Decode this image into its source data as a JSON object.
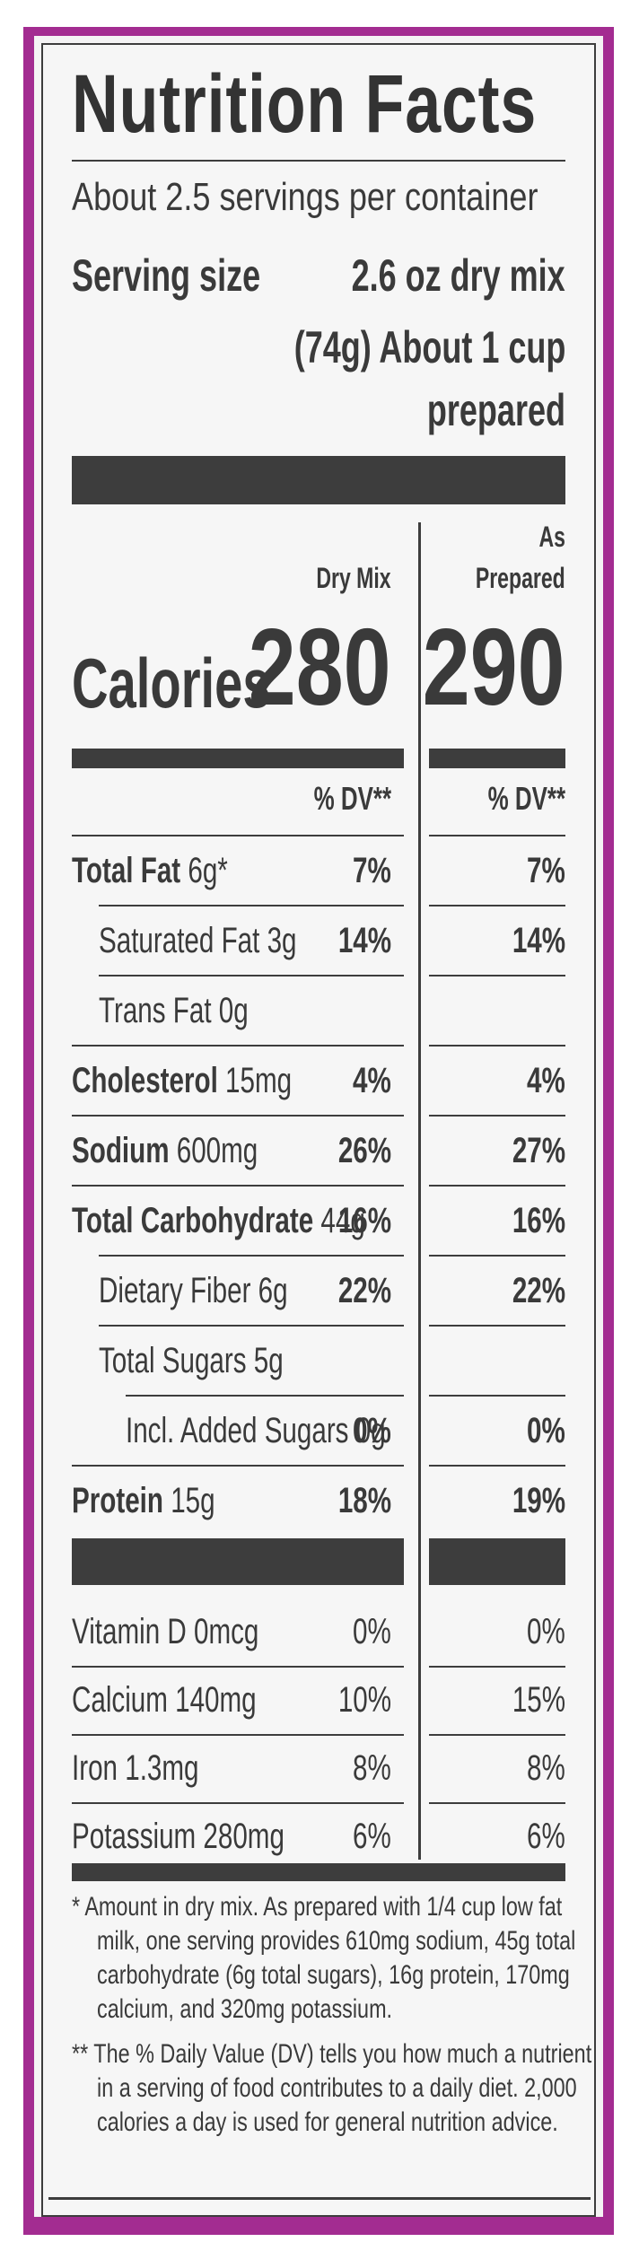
{
  "title": "Nutrition Facts",
  "servings_per_container": "About 2.5 servings per container",
  "serving_size": {
    "label": "Serving size",
    "line1": "2.6 oz dry mix",
    "line2": "(74g) About 1 cup",
    "line3": "prepared"
  },
  "columns": {
    "dry_mix": "Dry Mix",
    "as_prepared_line1": "As",
    "as_prepared_line2": "Prepared"
  },
  "calories": {
    "label": "Calories",
    "dry_mix": "280",
    "as_prepared": "290"
  },
  "dv_header": "% DV**",
  "nutrients": [
    {
      "name": "Total Fat",
      "amount": "6g*",
      "bold": true,
      "indent": 0,
      "dv_dry": "7%",
      "dv_prep": "7%"
    },
    {
      "name": "Saturated Fat",
      "amount": "3g",
      "bold": false,
      "indent": 1,
      "dv_dry": "14%",
      "dv_prep": "14%"
    },
    {
      "name": "Trans Fat",
      "amount": "0g",
      "bold": false,
      "indent": 1,
      "dv_dry": "",
      "dv_prep": ""
    },
    {
      "name": "Cholesterol",
      "amount": "15mg",
      "bold": true,
      "indent": 0,
      "dv_dry": "4%",
      "dv_prep": "4%"
    },
    {
      "name": "Sodium",
      "amount": "600mg",
      "bold": true,
      "indent": 0,
      "dv_dry": "26%",
      "dv_prep": "27%"
    },
    {
      "name": "Total Carbohydrate",
      "amount": "44g",
      "bold": true,
      "indent": 0,
      "dv_dry": "16%",
      "dv_prep": "16%"
    },
    {
      "name": "Dietary Fiber",
      "amount": "6g",
      "bold": false,
      "indent": 1,
      "dv_dry": "22%",
      "dv_prep": "22%"
    },
    {
      "name": "Total Sugars",
      "amount": "5g",
      "bold": false,
      "indent": 1,
      "dv_dry": "",
      "dv_prep": ""
    },
    {
      "name": "Incl. Added Sugars",
      "amount": "0g",
      "bold": false,
      "indent": 2,
      "dv_dry": "0%",
      "dv_prep": "0%"
    },
    {
      "name": "Protein",
      "amount": "15g",
      "bold": true,
      "indent": 0,
      "dv_dry": "18%",
      "dv_prep": "19%"
    }
  ],
  "vitamins": [
    {
      "name": "Vitamin D",
      "amount": "0mcg",
      "dv_dry": "0%",
      "dv_prep": "0%"
    },
    {
      "name": "Calcium",
      "amount": "140mg",
      "dv_dry": "10%",
      "dv_prep": "15%"
    },
    {
      "name": "Iron",
      "amount": "1.3mg",
      "dv_dry": "8%",
      "dv_prep": "8%"
    },
    {
      "name": "Potassium",
      "amount": "280mg",
      "dv_dry": "6%",
      "dv_prep": "6%"
    }
  ],
  "footnotes": {
    "star": [
      "* Amount in dry mix. As prepared with 1/4 cup low fat",
      "milk, one serving provides 610mg sodium, 45g total",
      "carbohydrate (6g total sugars), 16g protein, 170mg",
      "calcium, and 320mg potassium."
    ],
    "dv": [
      "** The % Daily Value (DV) tells you how much a nutrient",
      "in a serving of food contributes to a daily diet. 2,000",
      "calories a day is used for general nutrition advice."
    ]
  },
  "colors": {
    "border_accent": "#a32c91",
    "ink": "#3a3a3a"
  }
}
